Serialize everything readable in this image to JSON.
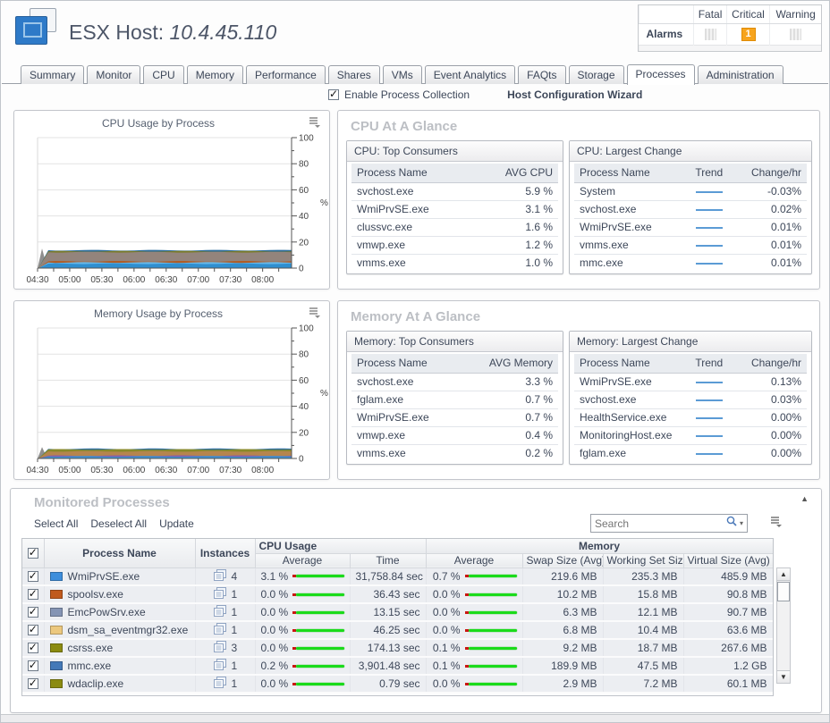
{
  "header": {
    "title_label": "ESX Host:",
    "title_value": "10.4.45.110",
    "alarms": {
      "row_label": "Alarms",
      "columns": [
        "Fatal",
        "Critical",
        "Warning"
      ],
      "counts": {
        "fatal": "",
        "critical": "1",
        "warning": ""
      },
      "critical_color": "#f7a41d"
    }
  },
  "tabs": {
    "active": "Processes",
    "items": [
      {
        "label": "Summary"
      },
      {
        "label": "Monitor"
      },
      {
        "label": "CPU"
      },
      {
        "label": "Memory"
      },
      {
        "label": "Performance"
      },
      {
        "label": "Shares"
      },
      {
        "label": "VMs"
      },
      {
        "label": "Event Analytics"
      },
      {
        "label": "FAQts"
      },
      {
        "label": "Storage"
      },
      {
        "label": "Processes"
      },
      {
        "label": "Administration"
      }
    ]
  },
  "controls": {
    "enable_process_collection_label": "Enable Process Collection",
    "enable_process_collection_checked": true,
    "host_configuration_wizard_label": "Host Configuration Wizard"
  },
  "cpu_glance": {
    "title": "CPU At A Glance",
    "top_consumers": {
      "title": "CPU: Top Consumers",
      "columns": [
        "Process Name",
        "AVG CPU"
      ],
      "rows": [
        {
          "name": "svchost.exe",
          "value": "5.9 %"
        },
        {
          "name": "WmiPrvSE.exe",
          "value": "3.1 %"
        },
        {
          "name": "clussvc.exe",
          "value": "1.6 %"
        },
        {
          "name": "vmwp.exe",
          "value": "1.2 %"
        },
        {
          "name": "vmms.exe",
          "value": "1.0 %"
        }
      ]
    },
    "largest_change": {
      "title": "CPU: Largest Change",
      "columns": [
        "Process Name",
        "Trend",
        "Change/hr"
      ],
      "rows": [
        {
          "name": "System",
          "value": "-0.03%"
        },
        {
          "name": "svchost.exe",
          "value": "0.02%"
        },
        {
          "name": "WmiPrvSE.exe",
          "value": "0.01%"
        },
        {
          "name": "vmms.exe",
          "value": "0.01%"
        },
        {
          "name": "mmc.exe",
          "value": "0.01%"
        }
      ]
    }
  },
  "memory_glance": {
    "title": "Memory At A Glance",
    "top_consumers": {
      "title": "Memory: Top Consumers",
      "columns": [
        "Process Name",
        "AVG Memory"
      ],
      "rows": [
        {
          "name": "svchost.exe",
          "value": "3.3 %"
        },
        {
          "name": "fglam.exe",
          "value": "0.7 %"
        },
        {
          "name": "WmiPrvSE.exe",
          "value": "0.7 %"
        },
        {
          "name": "vmwp.exe",
          "value": "0.4 %"
        },
        {
          "name": "vmms.exe",
          "value": "0.2 %"
        }
      ]
    },
    "largest_change": {
      "title": "Memory: Largest Change",
      "columns": [
        "Process Name",
        "Trend",
        "Change/hr"
      ],
      "rows": [
        {
          "name": "WmiPrvSE.exe",
          "value": "0.13%"
        },
        {
          "name": "svchost.exe",
          "value": "0.03%"
        },
        {
          "name": "HealthService.exe",
          "value": "0.00%"
        },
        {
          "name": "MonitoringHost.exe",
          "value": "0.00%"
        },
        {
          "name": "fglam.exe",
          "value": "0.00%"
        }
      ]
    }
  },
  "monitored": {
    "title": "Monitored Processes",
    "toolbar": [
      {
        "label": "Select All"
      },
      {
        "label": "Deselect All"
      },
      {
        "label": "Update"
      }
    ],
    "search_placeholder": "Search",
    "columns": {
      "process_name": "Process Name",
      "instances": "Instances",
      "cpu_group": "CPU Usage",
      "memory_group": "Memory",
      "cpu_average": "Average",
      "cpu_time": "Time",
      "mem_average": "Average",
      "swap": "Swap Size (Avg)",
      "working_set": "Working Set Size",
      "virtual": "Virtual Size (Avg)"
    },
    "rows": [
      {
        "checked": true,
        "color": "#3d8edc",
        "name": "WmiPrvSE.exe",
        "instances": "4",
        "cpu_avg": "3.1 %",
        "time": "31,758.84 sec",
        "mem_avg": "0.7 %",
        "swap": "219.6 MB",
        "working_set": "235.3 MB",
        "virtual": "485.9 MB"
      },
      {
        "checked": true,
        "color": "#c05a1e",
        "name": "spoolsv.exe",
        "instances": "1",
        "cpu_avg": "0.0 %",
        "time": "36.43 sec",
        "mem_avg": "0.0 %",
        "swap": "10.2 MB",
        "working_set": "15.8 MB",
        "virtual": "90.8 MB"
      },
      {
        "checked": true,
        "color": "#8494b4",
        "name": "EmcPowSrv.exe",
        "instances": "1",
        "cpu_avg": "0.0 %",
        "time": "13.15 sec",
        "mem_avg": "0.0 %",
        "swap": "6.3 MB",
        "working_set": "12.1 MB",
        "virtual": "90.7 MB"
      },
      {
        "checked": true,
        "color": "#ecc87e",
        "name": "dsm_sa_eventmgr32.exe",
        "instances": "1",
        "cpu_avg": "0.0 %",
        "time": "46.25 sec",
        "mem_avg": "0.0 %",
        "swap": "6.8 MB",
        "working_set": "10.4 MB",
        "virtual": "63.6 MB"
      },
      {
        "checked": true,
        "color": "#8b8b10",
        "name": "csrss.exe",
        "instances": "3",
        "cpu_avg": "0.0 %",
        "time": "174.13 sec",
        "mem_avg": "0.1 %",
        "swap": "9.2 MB",
        "working_set": "18.7 MB",
        "virtual": "267.6 MB"
      },
      {
        "checked": true,
        "color": "#4479b8",
        "name": "mmc.exe",
        "instances": "1",
        "cpu_avg": "0.2 %",
        "time": "3,901.48 sec",
        "mem_avg": "0.1 %",
        "swap": "189.9 MB",
        "working_set": "47.5 MB",
        "virtual": "1.2 GB"
      },
      {
        "checked": true,
        "color": "#8b8b10",
        "name": "wdaclip.exe",
        "instances": "1",
        "cpu_avg": "0.0 %",
        "time": "0.79 sec",
        "mem_avg": "0.0 %",
        "swap": "2.9 MB",
        "working_set": "7.2 MB",
        "virtual": "60.1 MB"
      }
    ]
  },
  "chart_data": [
    {
      "type": "area",
      "title": "CPU Usage by Process",
      "ylabel": "%",
      "ylim": [
        0,
        100
      ],
      "x_start": 4.5,
      "x_end": 8.45,
      "x_ticks": [
        "04:30",
        "05:00",
        "05:30",
        "06:00",
        "06:30",
        "07:00",
        "07:30",
        "08:00"
      ],
      "grid": true,
      "legend": "none",
      "approx_total_pct": 13.7,
      "stacked_layers": [
        {
          "name": "blue-band-bottom",
          "color": "#2f8fd0",
          "stack_top": 3.4
        },
        {
          "name": "light-blue-band",
          "color": "#66b8ea",
          "stack_top": 4.3
        },
        {
          "name": "orange-band",
          "color": "#b05c24",
          "stack_top": 5.2
        },
        {
          "name": "gray-brown-band",
          "color": "#93847c",
          "stack_top": 12.2
        },
        {
          "name": "olive-band",
          "color": "#7c7c2a",
          "stack_top": 12.9
        },
        {
          "name": "dark-blue-top-edge",
          "color": "#2e6f9e",
          "stack_top": 13.7
        }
      ]
    },
    {
      "type": "area",
      "title": "Memory Usage by Process",
      "ylabel": "%",
      "ylim": [
        0,
        100
      ],
      "x_start": 4.5,
      "x_end": 8.45,
      "x_ticks": [
        "04:30",
        "05:00",
        "05:30",
        "06:00",
        "06:30",
        "07:00",
        "07:30",
        "08:00"
      ],
      "grid": true,
      "legend": "none",
      "approx_total_pct": 7.4,
      "stacked_layers": [
        {
          "name": "blue-band-bottom",
          "color": "#3f8fd0",
          "stack_top": 1.6
        },
        {
          "name": "purple-band",
          "color": "#8a5ca8",
          "stack_top": 2.1
        },
        {
          "name": "tan-band",
          "color": "#b5854e",
          "stack_top": 5.4
        },
        {
          "name": "olive-band",
          "color": "#8a8a2a",
          "stack_top": 6.9
        },
        {
          "name": "dark-blue-top-edge",
          "color": "#2e6f9e",
          "stack_top": 7.4
        }
      ]
    }
  ]
}
